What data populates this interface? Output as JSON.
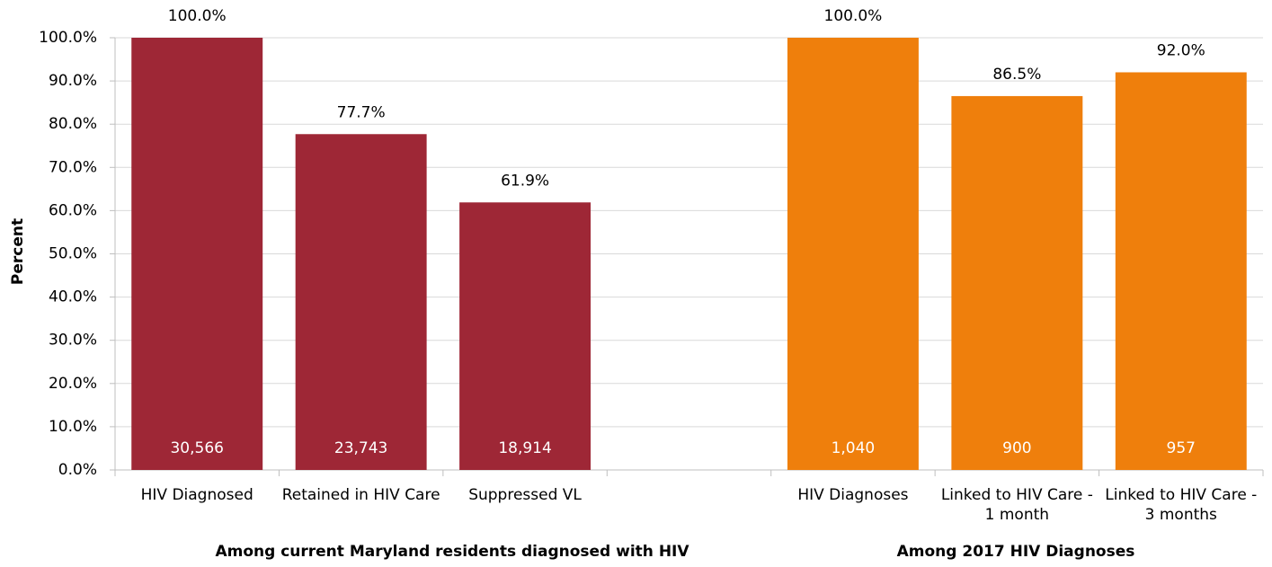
{
  "chart_data": {
    "type": "bar",
    "y_label": "Percent",
    "categories": [
      "HIV Diagnosed",
      "Retained in HIV Care",
      "Suppressed VL",
      null,
      "HIV Diagnoses",
      "Linked to HIV Care - 1 month",
      "Linked to HIV Care - 3 months"
    ],
    "values": [
      100.0,
      77.7,
      61.9,
      null,
      100.0,
      86.5,
      92.0
    ],
    "value_labels": [
      "100.0%",
      "77.7%",
      "61.9%",
      null,
      "100.0%",
      "86.5%",
      "92.0%"
    ],
    "bar_counts": [
      "30,566",
      "23,743",
      "18,914",
      null,
      "1,040",
      "900",
      "957"
    ],
    "colors": [
      "#9e2736",
      "#9e2736",
      "#9e2736",
      null,
      "#ef7f0c",
      "#ef7f0c",
      "#ef7f0c"
    ],
    "group_labels": [
      "Among current Maryland residents diagnosed with HIV",
      "Among 2017 HIV Diagnoses"
    ],
    "ylim": [
      0,
      100
    ],
    "yticks": [
      {
        "value": 0,
        "label": "0.0%"
      },
      {
        "value": 10,
        "label": "10.0%"
      },
      {
        "value": 20,
        "label": "20.0%"
      },
      {
        "value": 30,
        "label": "30.0%"
      },
      {
        "value": 40,
        "label": "40.0%"
      },
      {
        "value": 50,
        "label": "50.0%"
      },
      {
        "value": 60,
        "label": "60.0%"
      },
      {
        "value": 70,
        "label": "70.0%"
      },
      {
        "value": 80,
        "label": "80.0%"
      },
      {
        "value": 90,
        "label": "90.0%"
      },
      {
        "value": 100,
        "label": "100.0%"
      }
    ],
    "grid": true
  }
}
